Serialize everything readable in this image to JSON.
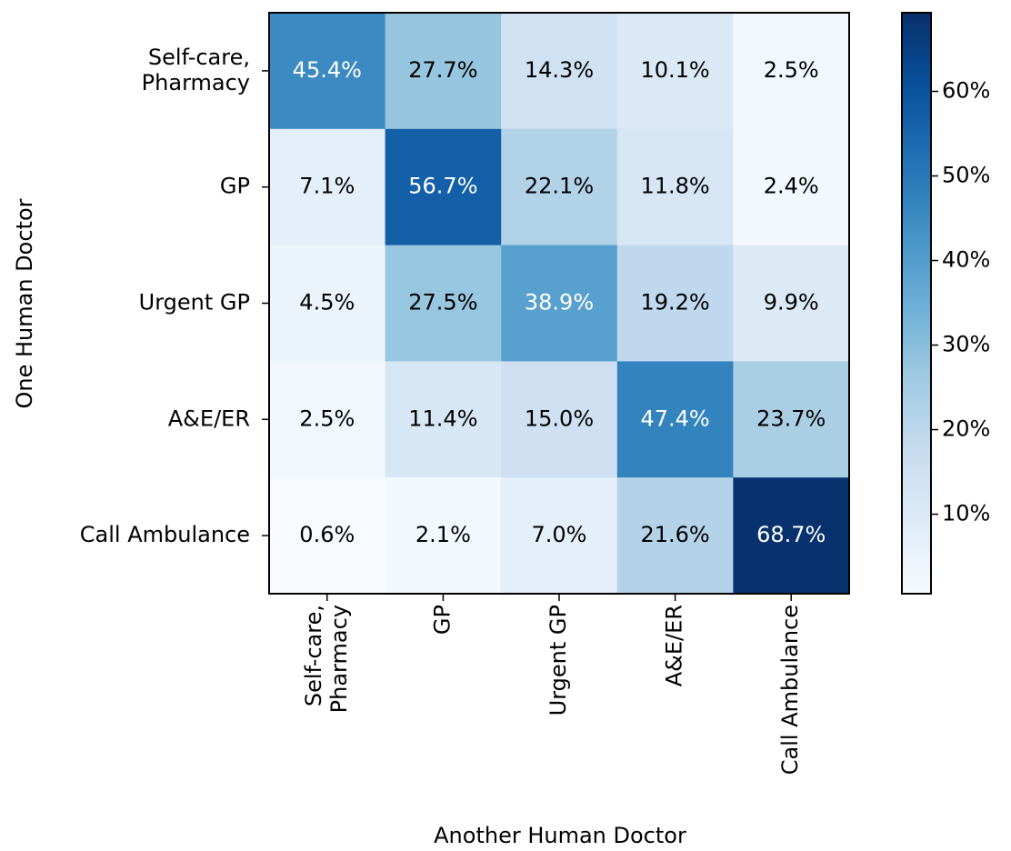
{
  "chart_data": {
    "type": "heatmap",
    "xlabel": "Another Human Doctor",
    "ylabel": "One Human Doctor",
    "x_categories": [
      "Self-care,\nPharmacy",
      "GP",
      "Urgent GP",
      "A&E/ER",
      "Call Ambulance"
    ],
    "y_categories": [
      "Self-care,\nPharmacy",
      "GP",
      "Urgent GP",
      "A&E/ER",
      "Call Ambulance"
    ],
    "values": [
      [
        45.4,
        27.7,
        14.3,
        10.1,
        2.5
      ],
      [
        7.1,
        56.7,
        22.1,
        11.8,
        2.4
      ],
      [
        4.5,
        27.5,
        38.9,
        19.2,
        9.9
      ],
      [
        2.5,
        11.4,
        15.0,
        47.4,
        23.7
      ],
      [
        0.6,
        2.1,
        7.0,
        21.6,
        68.7
      ]
    ],
    "value_labels": [
      [
        "45.4%",
        "27.7%",
        "14.3%",
        "10.1%",
        "2.5%"
      ],
      [
        "7.1%",
        "56.7%",
        "22.1%",
        "11.8%",
        "2.4%"
      ],
      [
        "4.5%",
        "27.5%",
        "38.9%",
        "19.2%",
        "9.9%"
      ],
      [
        "2.5%",
        "11.4%",
        "15.0%",
        "47.4%",
        "23.7%"
      ],
      [
        "0.6%",
        "2.1%",
        "7.0%",
        "21.6%",
        "68.7%"
      ]
    ],
    "colormap": "Blues",
    "zlim": [
      0.6,
      69.3
    ],
    "zticks": [
      {
        "value": 10,
        "label": "10%"
      },
      {
        "value": 20,
        "label": "20%"
      },
      {
        "value": 30,
        "label": "30%"
      },
      {
        "value": 40,
        "label": "40%"
      },
      {
        "value": 50,
        "label": "50%"
      },
      {
        "value": 60,
        "label": "60%"
      }
    ]
  }
}
